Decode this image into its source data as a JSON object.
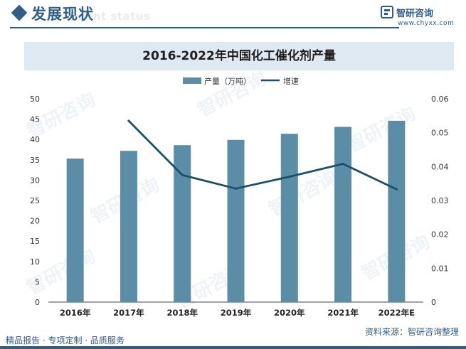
{
  "header": {
    "title": "发展现状",
    "watermark_en": "ment status",
    "brand_name": "智研咨询",
    "brand_url": "www.chyxx.com"
  },
  "watermark_text": "智研咨询",
  "colors": {
    "accent": "#2f5f88",
    "bar": "#5b8ea6",
    "line": "#1d4f6b",
    "band": "#dfe9f2"
  },
  "chart_data": {
    "type": "bar",
    "title": "2016-2022年中国化工催化剂产量",
    "categories": [
      "2016年",
      "2017年",
      "2018年",
      "2019年",
      "2020年",
      "2021年",
      "2022年E"
    ],
    "legend_position": "top-center",
    "grid": false,
    "series": [
      {
        "name": "产量（万吨）",
        "type": "bar",
        "axis": "left",
        "values": [
          35.3,
          37.2,
          38.6,
          39.9,
          41.4,
          43.1,
          44.6
        ]
      },
      {
        "name": "增速",
        "type": "line",
        "axis": "right",
        "values": [
          null,
          0.0535,
          0.0375,
          0.0335,
          0.037,
          0.0408,
          0.0333
        ]
      }
    ],
    "y_left": {
      "min": 0,
      "max": 50,
      "ticks": [
        "0",
        "5",
        "10",
        "15",
        "20",
        "25",
        "30",
        "35",
        "40",
        "45",
        "50"
      ]
    },
    "y_right": {
      "min": 0,
      "max": 0.06,
      "ticks": [
        "0",
        "0.01",
        "0.02",
        "0.03",
        "0.04",
        "0.05",
        "0.06"
      ]
    }
  },
  "footer": {
    "left": "精品报告 · 专项定制 · 品质服务",
    "right": "资料来源：智研咨询整理"
  }
}
